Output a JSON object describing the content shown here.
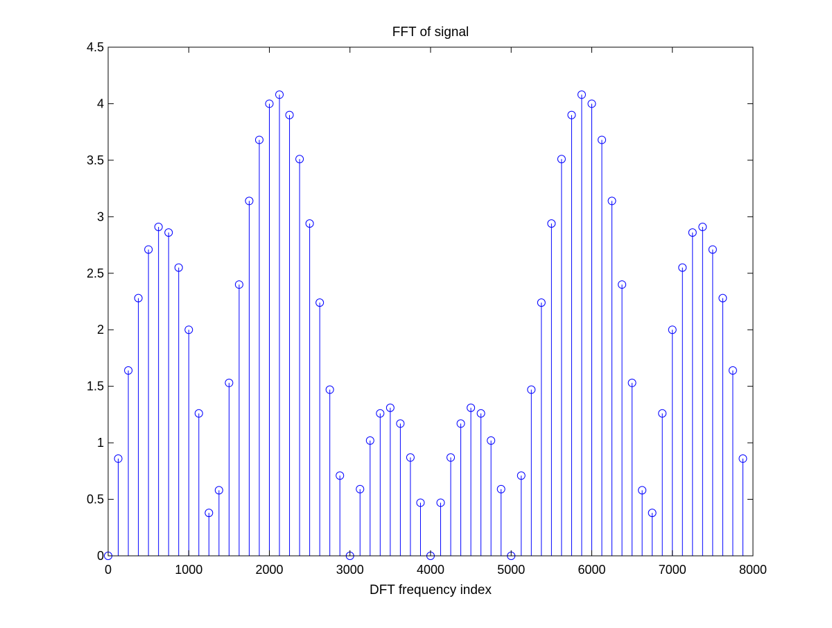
{
  "chart_data": {
    "type": "stem",
    "title": "FFT of signal",
    "xlabel": "DFT frequency index",
    "ylabel": "",
    "xlim": [
      0,
      8000
    ],
    "ylim": [
      0,
      4.5
    ],
    "xticks": [
      0,
      1000,
      2000,
      3000,
      4000,
      5000,
      6000,
      7000,
      8000
    ],
    "yticks": [
      0,
      0.5,
      1,
      1.5,
      2,
      2.5,
      3,
      3.5,
      4,
      4.5
    ],
    "xtick_labels": [
      "0",
      "1000",
      "2000",
      "3000",
      "4000",
      "5000",
      "6000",
      "7000",
      "8000"
    ],
    "ytick_labels": [
      "0",
      "0.5",
      "1",
      "1.5",
      "2",
      "2.5",
      "3",
      "3.5",
      "4",
      "4.5"
    ],
    "grid": false,
    "marker": "circle",
    "stem_color": "#0000ff",
    "x": [
      0,
      125,
      250,
      375,
      500,
      625,
      750,
      875,
      1000,
      1125,
      1250,
      1375,
      1500,
      1625,
      1750,
      1875,
      2000,
      2125,
      2250,
      2375,
      2500,
      2625,
      2750,
      2875,
      3000,
      3125,
      3250,
      3375,
      3500,
      3625,
      3750,
      3875,
      4000,
      4125,
      4250,
      4375,
      4500,
      4625,
      4750,
      4875,
      5000,
      5125,
      5250,
      5375,
      5500,
      5625,
      5750,
      5875,
      6000,
      6125,
      6250,
      6375,
      6500,
      6625,
      6750,
      6875,
      7000,
      7125,
      7250,
      7375,
      7500,
      7625,
      7750,
      7875
    ],
    "values": [
      0,
      0.86,
      1.64,
      2.28,
      2.71,
      2.91,
      2.86,
      2.55,
      2.0,
      1.26,
      0.38,
      0.58,
      1.53,
      2.4,
      3.14,
      3.68,
      4.0,
      4.08,
      3.9,
      3.51,
      2.94,
      2.24,
      1.47,
      0.71,
      0,
      0.59,
      1.02,
      1.26,
      1.31,
      1.17,
      0.87,
      0.47,
      0,
      0.47,
      0.87,
      1.17,
      1.31,
      1.26,
      1.02,
      0.59,
      0,
      0.71,
      1.47,
      2.24,
      2.94,
      3.51,
      3.9,
      4.08,
      4.0,
      3.68,
      3.14,
      2.4,
      1.53,
      0.58,
      0.38,
      1.26,
      2.0,
      2.55,
      2.86,
      2.91,
      2.71,
      2.28,
      1.64,
      0.86
    ]
  }
}
